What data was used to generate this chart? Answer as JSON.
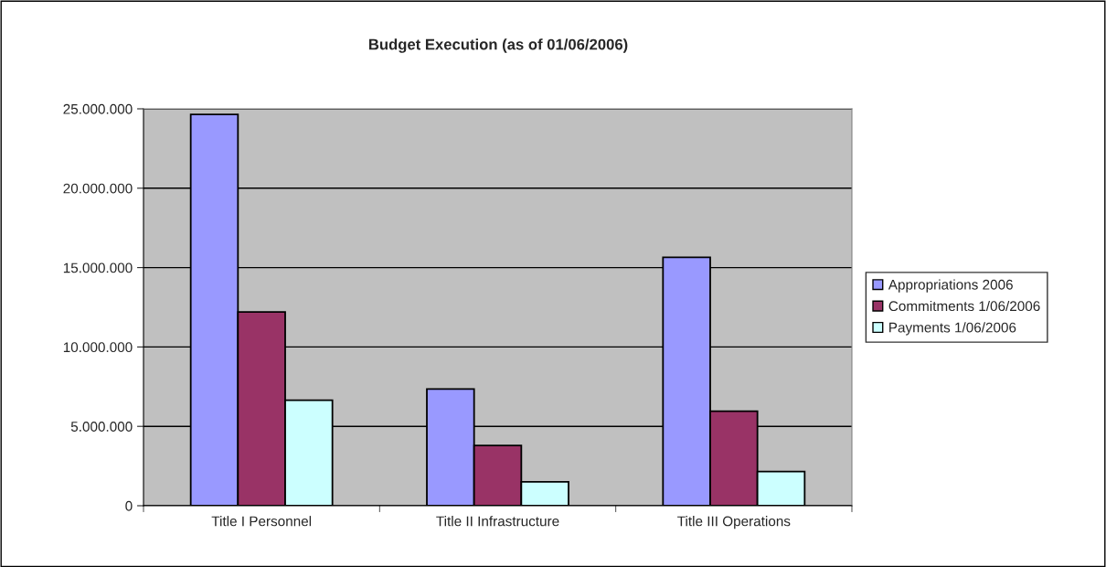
{
  "chart_data": {
    "type": "bar",
    "title": "Budget Execution (as of 01/06/2006)",
    "categories": [
      "Title I Personnel",
      "Title II Infrastructure",
      "Title III Operations"
    ],
    "series": [
      {
        "name": "Appropriations 2006",
        "color": "#9999ff",
        "values": [
          24650000,
          7350000,
          15650000
        ]
      },
      {
        "name": "Commitments 1/06/2006",
        "color": "#993366",
        "values": [
          12200000,
          3800000,
          5950000
        ]
      },
      {
        "name": "Payments 1/06/2006",
        "color": "#ccffff",
        "values": [
          6650000,
          1500000,
          2150000
        ]
      }
    ],
    "ylim": [
      0,
      25000000
    ],
    "yticks": [
      0,
      {
        "value": 5000000,
        "label": "5.000.000"
      },
      {
        "value": 10000000,
        "label": "10.000.000"
      },
      {
        "value": 15000000,
        "label": "15.000.000"
      },
      {
        "value": 20000000,
        "label": "20.000.000"
      },
      {
        "value": 25000000,
        "label": "25.000.000"
      }
    ],
    "grid": "y",
    "legend": "right"
  }
}
